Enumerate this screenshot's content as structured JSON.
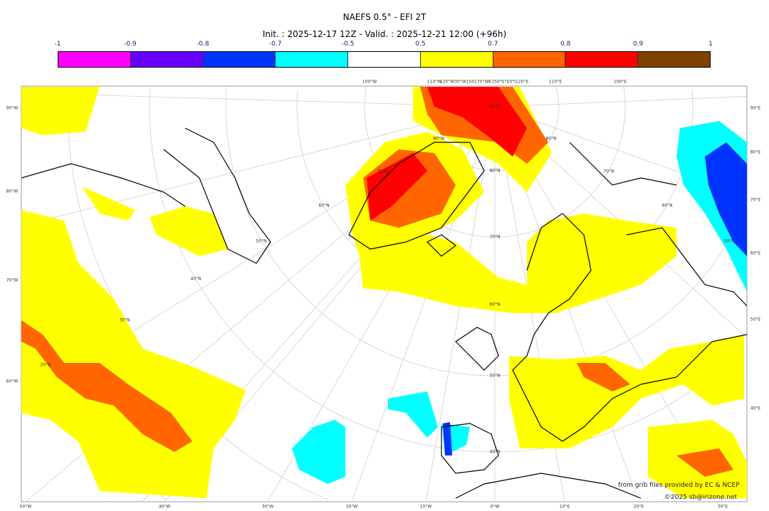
{
  "title": "NAEFS 0.5° - EFI 2T",
  "subtitle": "Init. : 2025-12-17 12Z - Valid. : 2025-12-21 12:00 (+96h)",
  "colorbar": {
    "ticks": [
      "-1",
      "-0.9",
      "-0.8",
      "-0.7",
      "-0.5",
      "0.5",
      "0.7",
      "0.8",
      "0.9",
      "1"
    ],
    "colors": [
      "#ff00ff",
      "#6600ff",
      "#0033ff",
      "#00ffff",
      "#ffffff",
      "#ffff00",
      "#ff6600",
      "#ff0000",
      "#804000"
    ]
  },
  "map": {
    "top_labels": [
      "100°W",
      "110°W",
      "120°W30°W150170°W€150°E°E0°I120°E",
      "110°E",
      "100°E"
    ],
    "left_labels": [
      "90°W",
      "80°W",
      "70°W",
      "60°W"
    ],
    "right_labels": [
      "90°E",
      "80°E",
      "70°E",
      "60°E",
      "50°E",
      "40°E"
    ],
    "bottom_labels": [
      "50°W",
      "40°W",
      "30°W",
      "20°W",
      "10°W",
      "0°W",
      "10°E",
      "20°E",
      "30°E"
    ],
    "center_lat_labels": [
      "90°N",
      "80°N",
      "70°N",
      "60°N",
      "50°N",
      "40°N"
    ],
    "left_lat_labels": [
      "80°N",
      "70°N",
      "60°N",
      "50°N",
      "40°N",
      "30°N",
      "20°N"
    ],
    "right_lat_labels": [
      "80°N",
      "70°N",
      "60°N",
      "50°N"
    ]
  },
  "credits": {
    "source": "from grib files provided by EC & NCEP",
    "copyright": "©2025 sb@irizone.net"
  }
}
